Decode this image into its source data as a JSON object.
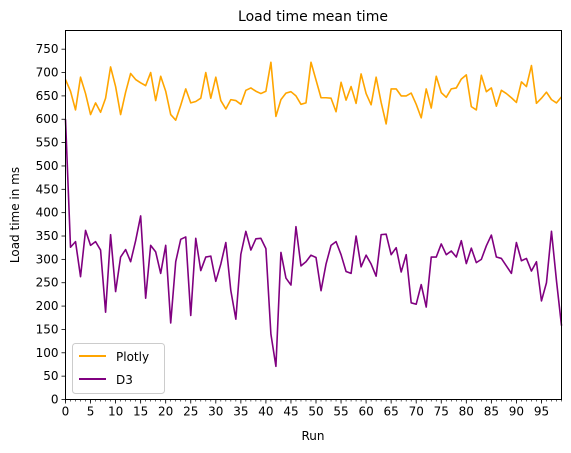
{
  "chart_data": {
    "type": "line",
    "title": "Load time mean time",
    "xlabel": "Run",
    "ylabel": "Load time in ms",
    "xlim": [
      0,
      99
    ],
    "ylim": [
      0,
      790
    ],
    "x_ticks": [
      0,
      5,
      10,
      15,
      20,
      25,
      30,
      35,
      40,
      45,
      50,
      55,
      60,
      65,
      70,
      75,
      80,
      85,
      90,
      95
    ],
    "y_ticks": [
      0,
      50,
      100,
      150,
      200,
      250,
      300,
      350,
      400,
      450,
      500,
      550,
      600,
      650,
      700,
      750
    ],
    "x_minor_ticks_every": 1,
    "grid": false,
    "legend_position": "lower-left",
    "series": [
      {
        "name": "Plotly",
        "color": "#ffa500",
        "values": [
          685,
          660,
          620,
          690,
          655,
          610,
          635,
          615,
          645,
          712,
          670,
          610,
          658,
          698,
          685,
          678,
          672,
          700,
          640,
          692,
          660,
          610,
          598,
          630,
          665,
          635,
          638,
          645,
          700,
          645,
          690,
          640,
          622,
          642,
          640,
          632,
          662,
          667,
          660,
          655,
          660,
          722,
          606,
          642,
          656,
          659,
          650,
          632,
          635,
          722,
          684,
          646,
          646,
          645,
          616,
          679,
          641,
          670,
          634,
          697,
          655,
          631,
          690,
          636,
          590,
          665,
          665,
          650,
          650,
          656,
          632,
          603,
          665,
          624,
          692,
          657,
          647,
          665,
          667,
          686,
          695,
          627,
          620,
          694,
          659,
          667,
          628,
          662,
          655,
          646,
          636,
          680,
          670,
          715,
          634,
          645,
          658,
          642,
          635,
          648
        ]
      },
      {
        "name": "D3",
        "color": "#800080",
        "values": [
          600,
          326,
          338,
          263,
          362,
          330,
          338,
          320,
          187,
          353,
          231,
          305,
          321,
          295,
          340,
          393,
          217,
          330,
          316,
          270,
          330,
          164,
          295,
          343,
          348,
          180,
          345,
          276,
          305,
          307,
          253,
          290,
          336,
          233,
          172,
          311,
          360,
          320,
          344,
          345,
          323,
          140,
          71,
          315,
          260,
          245,
          370,
          286,
          295,
          309,
          304,
          233,
          290,
          330,
          338,
          310,
          274,
          270,
          350,
          284,
          309,
          290,
          264,
          353,
          354,
          310,
          325,
          273,
          310,
          207,
          204,
          246,
          198,
          305,
          305,
          333,
          310,
          318,
          305,
          340,
          291,
          324,
          293,
          300,
          329,
          352,
          305,
          302,
          286,
          270,
          336,
          297,
          302,
          275,
          295,
          211,
          250,
          360,
          254,
          158
        ]
      }
    ]
  }
}
